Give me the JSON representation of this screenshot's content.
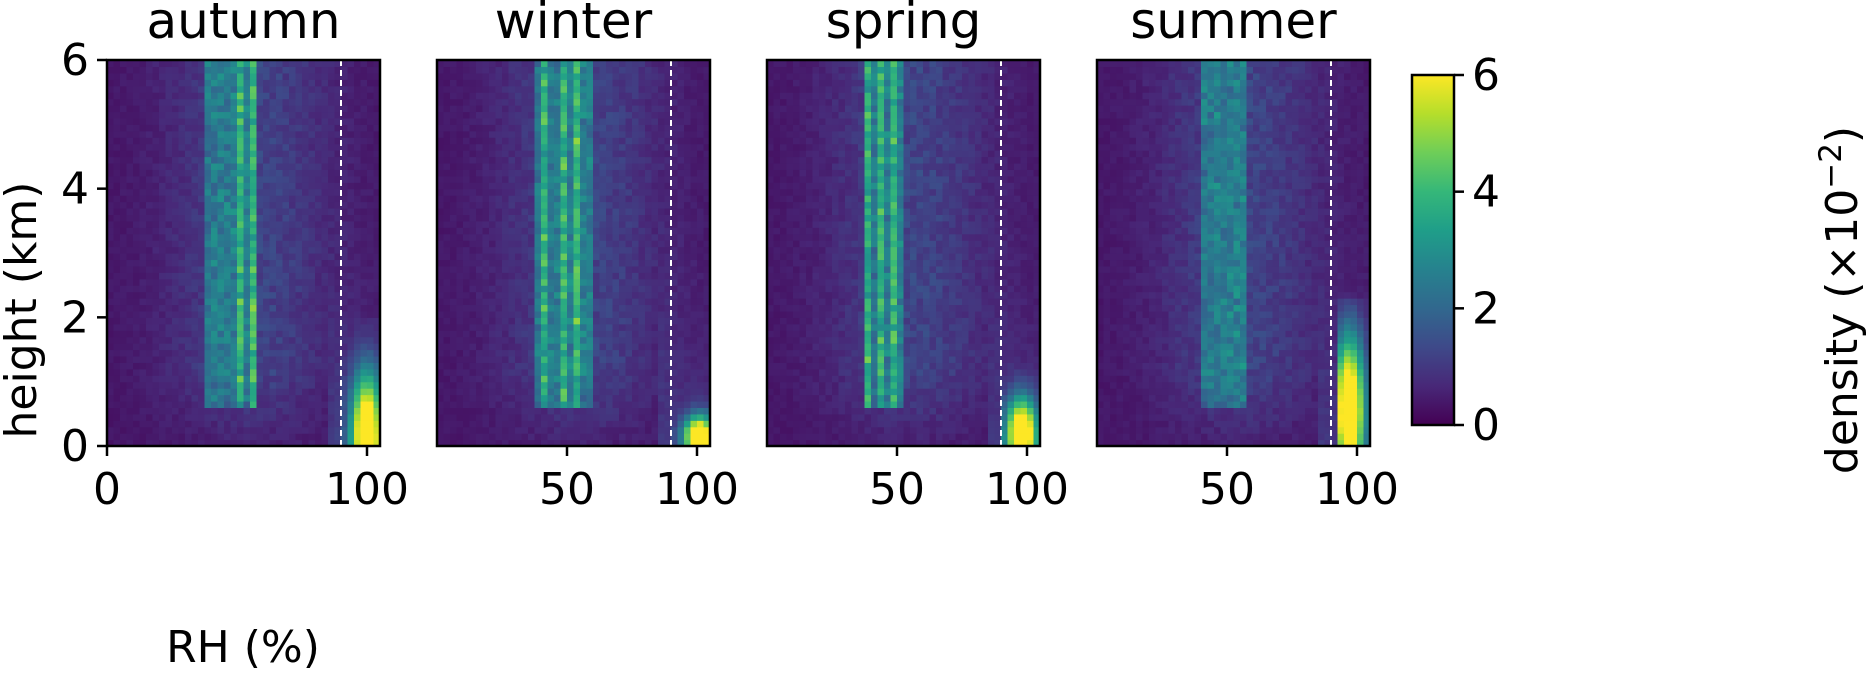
{
  "chart_data": {
    "type": "heatmap",
    "panels": [
      {
        "title": "autumn",
        "xlim": [
          0,
          105
        ],
        "xticks": [
          "0",
          "100"
        ],
        "xtick_values": [
          0,
          100
        ],
        "bright_zone": {
          "x": [
            88,
            105
          ],
          "y": [
            0,
            1.6
          ],
          "peak_x": 100,
          "peak_y": 0.2
        },
        "streaks": [
          47,
          50,
          52,
          55,
          57,
          43,
          40
        ]
      },
      {
        "title": "winter",
        "xlim": [
          0,
          105
        ],
        "xticks": [
          "50",
          "100"
        ],
        "xtick_values": [
          50,
          100
        ],
        "bright_zone": {
          "x": [
            90,
            105
          ],
          "y": [
            0,
            0.5
          ],
          "peak_x": 101,
          "peak_y": 0.15
        },
        "streaks": [
          45,
          48,
          50,
          53,
          55,
          58,
          42,
          40
        ]
      },
      {
        "title": "spring",
        "xlim": [
          0,
          105
        ],
        "xticks": [
          "50",
          "100"
        ],
        "xtick_values": [
          50,
          100
        ],
        "bright_zone": {
          "x": [
            90,
            105
          ],
          "y": [
            0,
            0.9
          ],
          "peak_x": 98,
          "peak_y": 0.2
        },
        "streaks": [
          40,
          43,
          45,
          48,
          50,
          38
        ]
      },
      {
        "title": "summer",
        "xlim": [
          0,
          105
        ],
        "xticks": [
          "50",
          "100"
        ],
        "xtick_values": [
          50,
          100
        ],
        "bright_zone": {
          "x": [
            92,
            102
          ],
          "y": [
            0,
            1.9
          ],
          "peak_x": 97,
          "peak_y": 0.6
        },
        "streaks": [
          42,
          45,
          48,
          52,
          55
        ]
      }
    ],
    "threshold_line_x": 90,
    "ylim": [
      0,
      6
    ],
    "yticks": [
      "0",
      "2",
      "4",
      "6"
    ],
    "ytick_values": [
      0,
      2,
      4,
      6
    ],
    "xlabel": "RH (%)",
    "ylabel": "height (km)",
    "colorbar": {
      "label": "density (×10",
      "label_exponent": "−2",
      "label_close": ")",
      "ticks": [
        "0",
        "2",
        "4",
        "6"
      ],
      "tick_values": [
        0,
        2,
        4,
        6
      ],
      "range": [
        0,
        6
      ],
      "colormap": "viridis"
    }
  },
  "colors": {
    "viridis_stops": [
      "#440154",
      "#482878",
      "#3e4989",
      "#31688e",
      "#26828e",
      "#1f9e89",
      "#35b779",
      "#6ece58",
      "#b5de2b",
      "#fde725"
    ],
    "threshold_line": "#ffffff"
  }
}
